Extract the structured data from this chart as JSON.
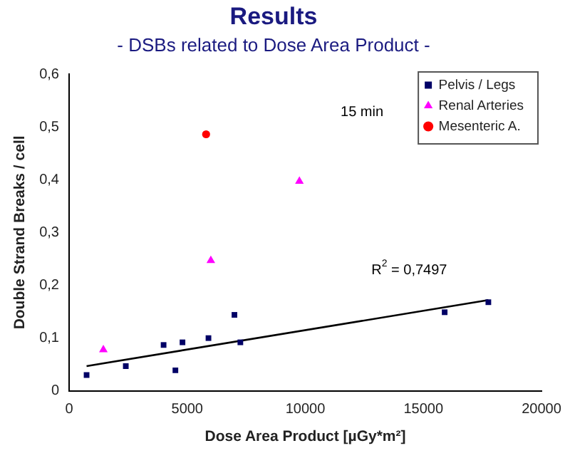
{
  "chart_data": {
    "type": "scatter",
    "title": "Results",
    "subtitle": "- DSBs related to Dose Area Product -",
    "xlabel": "Dose Area Product [µGy*m²]",
    "ylabel": "Double Strand Breaks / cell",
    "xlim": [
      0,
      20000
    ],
    "xticks": [
      0,
      5000,
      10000,
      15000,
      20000
    ],
    "ylim": [
      0,
      0.6
    ],
    "yticks": [
      0,
      {
        "value": 0.1,
        "label": "0,1"
      },
      {
        "value": 0.2,
        "label": "0,2"
      },
      {
        "value": 0.3,
        "label": "0,3"
      },
      {
        "value": 0.4,
        "label": "0,4"
      },
      {
        "value": 0.5,
        "label": "0,5"
      },
      {
        "value": 0.6,
        "label": "0,6"
      }
    ],
    "grid": false,
    "legend": "top right",
    "annotations": [
      "15 min",
      "R$^{2}$ = 0,7497"
    ],
    "series": [
      {
        "name": "Pelvis / Legs",
        "color": "#000066",
        "marker": "square",
        "x": [
          740,
          2400,
          4000,
          4500,
          4800,
          5900,
          7000,
          7250,
          15900,
          17750
        ],
        "values": [
          0.03,
          0.047,
          0.087,
          0.039,
          0.092,
          0.1,
          0.144,
          0.092,
          0.149,
          0.168
        ]
      },
      {
        "name": "Renal Arteries",
        "color": "#ff00ff",
        "marker": "triangle",
        "x": [
          1450,
          6000,
          9750
        ],
        "values": [
          0.078,
          0.247,
          0.397
        ]
      },
      {
        "name": "Mesenteric A.",
        "color": "#ff0000",
        "marker": "circle",
        "x": [
          5800
        ],
        "values": [
          0.486
        ]
      },
      {
        "type": "line",
        "color": "#000000",
        "marker": "none",
        "x": [
          740,
          17750
        ],
        "values": [
          0.047,
          0.172
        ]
      }
    ]
  }
}
